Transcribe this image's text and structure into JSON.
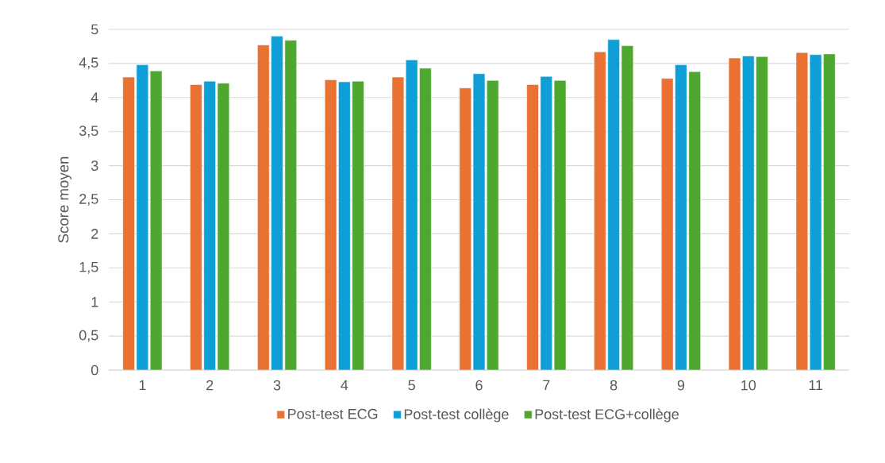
{
  "chart_data": {
    "type": "bar",
    "ylabel": "Score moyen",
    "categories": [
      "1",
      "2",
      "3",
      "4",
      "5",
      "6",
      "7",
      "8",
      "9",
      "10",
      "11"
    ],
    "series": [
      {
        "name": "Post-test ECG",
        "color": "#e97132",
        "values": [
          4.3,
          4.19,
          4.77,
          4.26,
          4.3,
          4.14,
          4.19,
          4.67,
          4.28,
          4.58,
          4.66
        ]
      },
      {
        "name": "Post-test collège",
        "color": "#0f9ed5",
        "values": [
          4.48,
          4.24,
          4.9,
          4.23,
          4.55,
          4.35,
          4.31,
          4.85,
          4.48,
          4.61,
          4.63
        ]
      },
      {
        "name": "Post-test ECG+collège",
        "color": "#4ea72e",
        "values": [
          4.39,
          4.21,
          4.84,
          4.24,
          4.43,
          4.25,
          4.25,
          4.76,
          4.38,
          4.6,
          4.64
        ]
      }
    ],
    "ylim": [
      0,
      5
    ],
    "yticks": [
      0,
      {
        "value": 0.5,
        "label": "0,5"
      },
      1,
      {
        "value": 1.5,
        "label": "1,5"
      },
      2,
      {
        "value": 2.5,
        "label": "2,5"
      },
      3,
      {
        "value": 3.5,
        "label": "3,5"
      },
      4,
      {
        "value": 4.5,
        "label": "4,5"
      },
      5
    ],
    "grid": "y",
    "legend": "bottom"
  }
}
